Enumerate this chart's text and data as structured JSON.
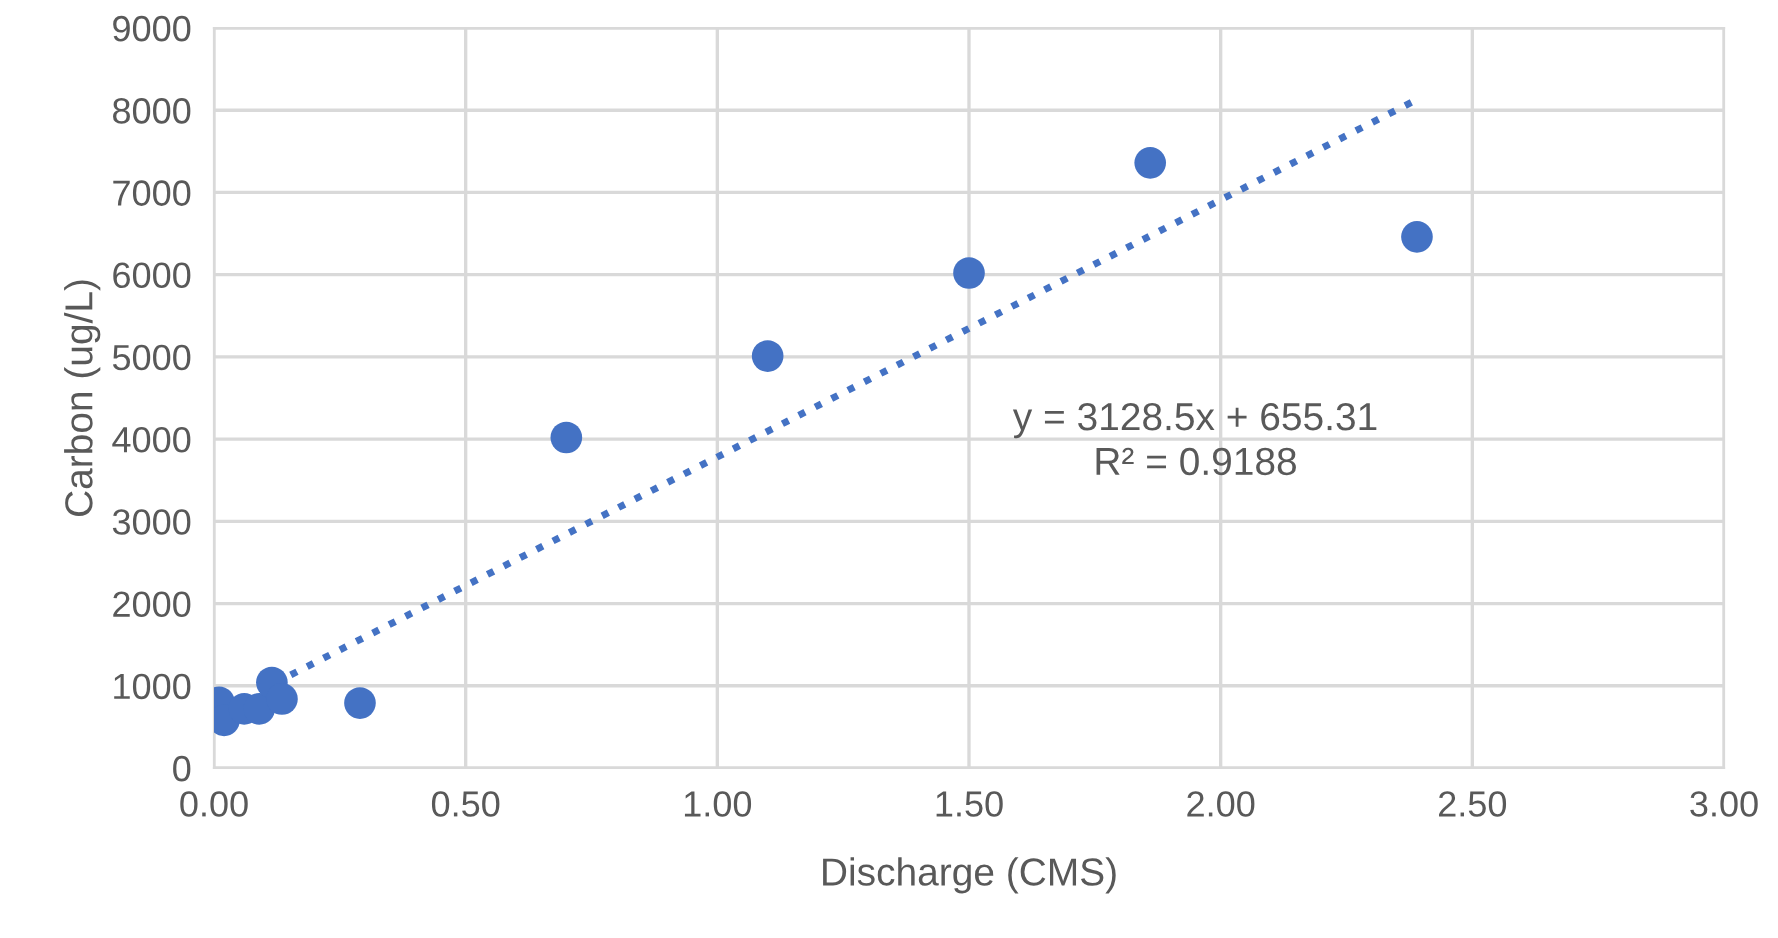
{
  "chart_data": {
    "type": "scatter",
    "xlabel": "Discharge (CMS)",
    "ylabel": "Carbon (ug/L)",
    "series": [
      {
        "color": "#4472c4",
        "x": [
          0.01,
          0.02,
          0.06,
          0.09,
          0.115,
          0.135,
          0.29,
          0.7,
          1.1,
          1.5,
          1.86,
          2.39
        ],
        "values": [
          800,
          580,
          720,
          720,
          1040,
          840,
          790,
          4020,
          5010,
          6020,
          7360,
          6460
        ]
      },
      {
        "type": "line",
        "color": "#4472c4",
        "line_style": "dotted",
        "marker": "none",
        "x": [
          0.12,
          2.39
        ],
        "values": [
          1030,
          8130
        ]
      }
    ],
    "annotations": [
      "y = 3128.5x + 655.31\nR² = 0.9188"
    ],
    "xlim": [
      0,
      3
    ],
    "xticks": [
      {
        "value": 0,
        "label": "0.00"
      },
      {
        "value": 0.5,
        "label": "0.50"
      },
      {
        "value": 1,
        "label": "1.00"
      },
      {
        "value": 1.5,
        "label": "1.50"
      },
      {
        "value": 2,
        "label": "2.00"
      },
      {
        "value": 2.5,
        "label": "2.50"
      },
      {
        "value": 3,
        "label": "3.00"
      }
    ],
    "ylim": [
      0,
      9000
    ],
    "yticks": [
      0,
      1000,
      2000,
      3000,
      4000,
      5000,
      6000,
      7000,
      8000,
      9000
    ],
    "grid": true,
    "marker": "circle"
  }
}
